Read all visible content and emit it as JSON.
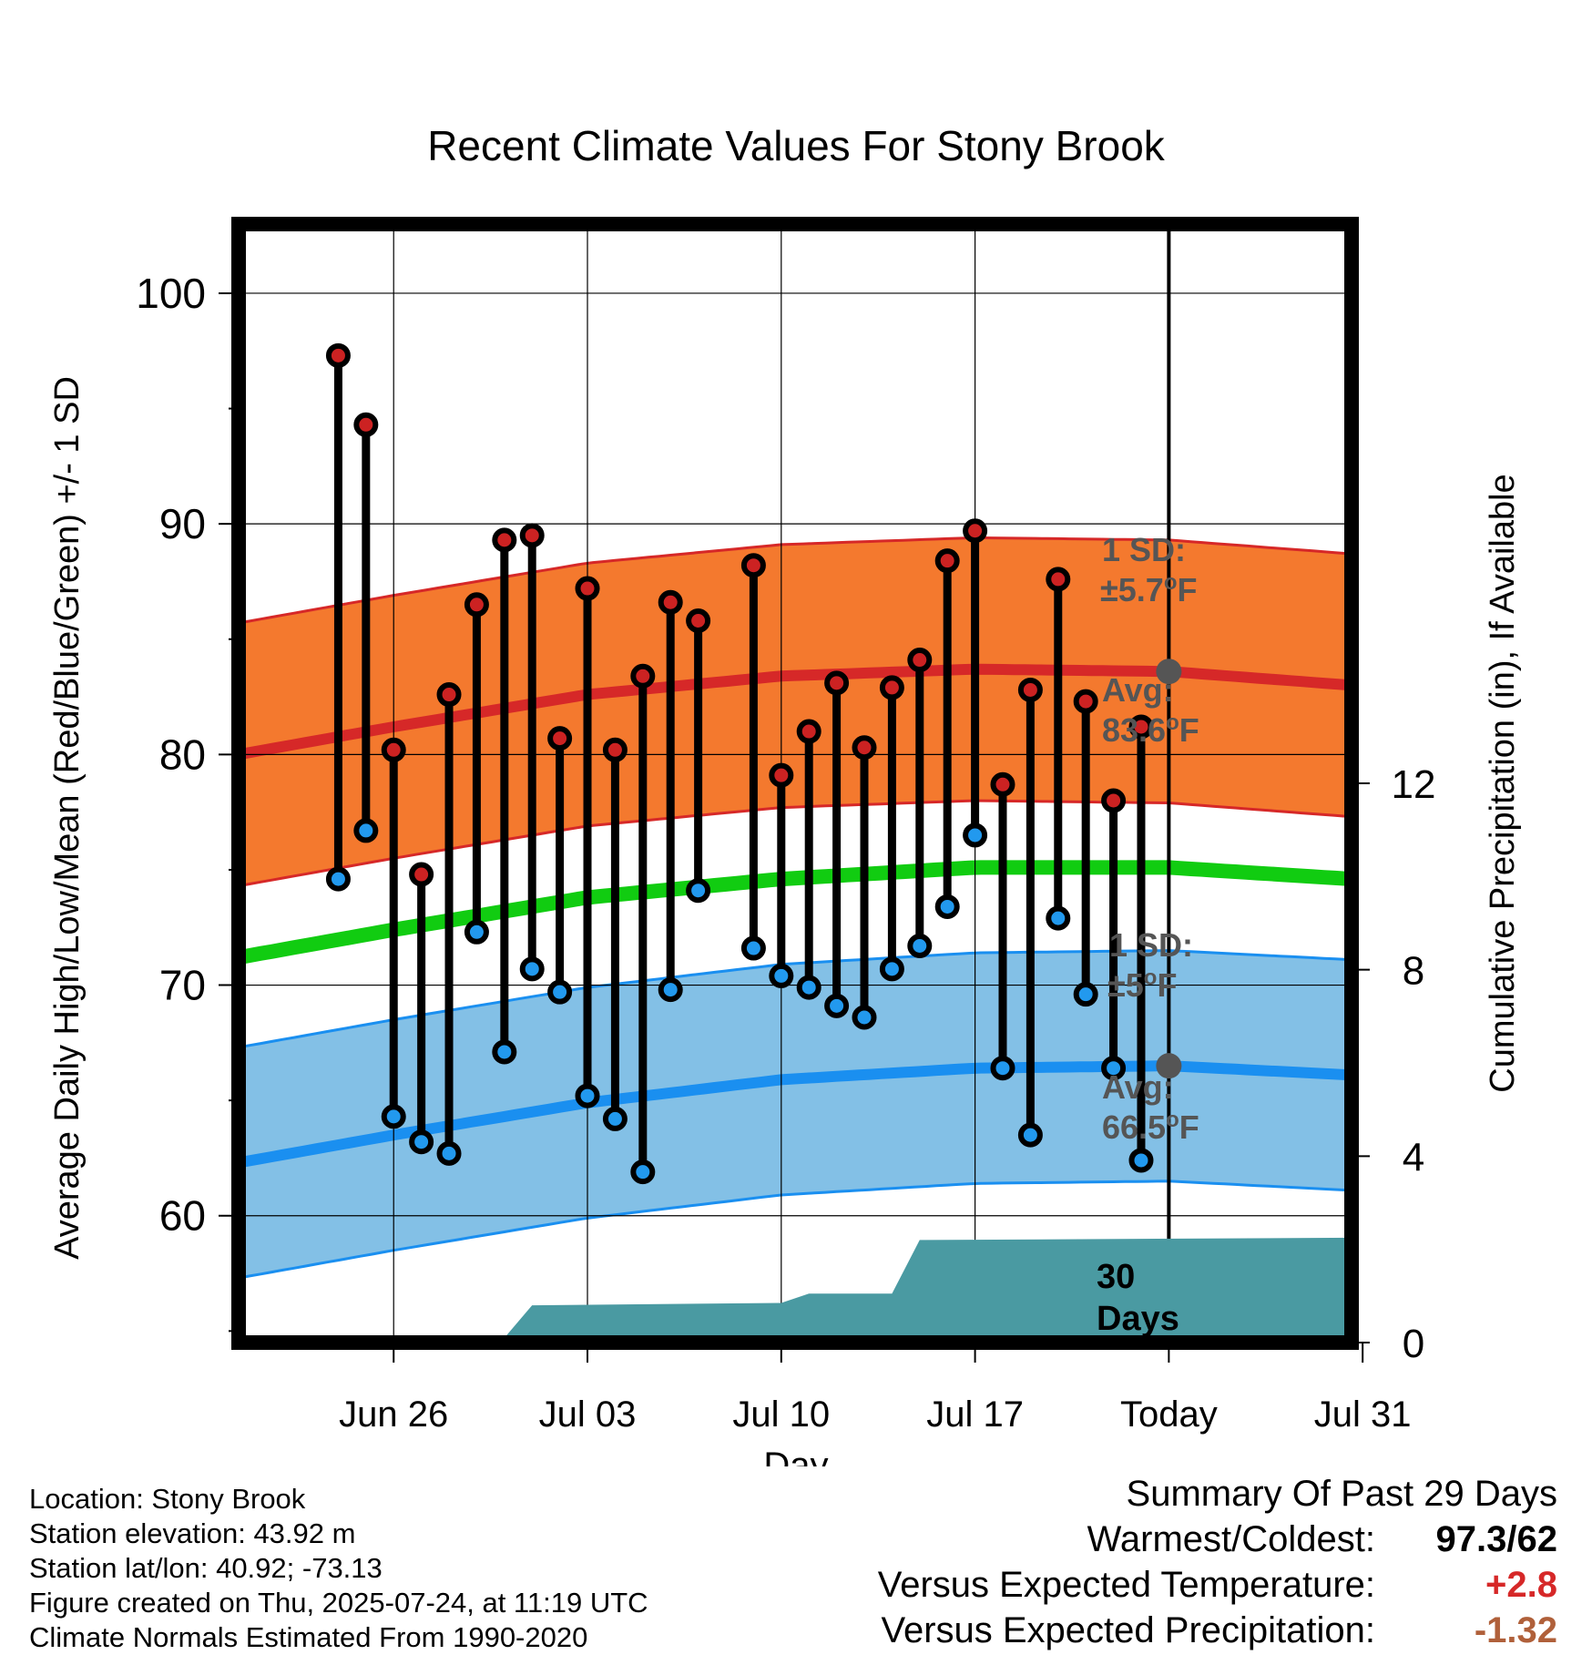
{
  "title": "Recent Climate Values For Stony Brook",
  "colors": {
    "high_dot": "#cc2222",
    "low_dot": "#2299ee",
    "high_band": "#f4792e",
    "high_avg": "#d62828",
    "low_band": "#83c0e6",
    "low_avg": "#1a8ff0",
    "mean_line": "#11cc11",
    "precip": "#4a9aa2",
    "annotation": "#555555",
    "anomaly_temp": "#d62828",
    "anomaly_precip": "#b0603a"
  },
  "chart_data": {
    "type": "line",
    "title": "Recent Climate Values For Stony Brook",
    "xlabel": "Day",
    "ylabel": "Average Daily High/Low/Mean (Red/Blue/Green) +/- 1 SD",
    "y2label": "Cumulative Precipitation (in), If Available",
    "ylim": [
      54.5,
      103
    ],
    "y2lim": [
      0,
      24
    ],
    "xlim": [
      -5.6,
      34.6
    ],
    "x_ticks": [
      {
        "x": 0,
        "label": "Jun 26"
      },
      {
        "x": 7,
        "label": "Jul 03"
      },
      {
        "x": 14,
        "label": "Jul 10"
      },
      {
        "x": 21,
        "label": "Jul 17"
      },
      {
        "x": 28,
        "label": "Today"
      },
      {
        "x": 35,
        "label": "Jul 31"
      }
    ],
    "y_ticks": [
      60,
      70,
      80,
      90,
      100
    ],
    "y2_ticks": [
      0,
      4,
      8,
      12
    ],
    "grid": true,
    "today_x": 28,
    "daily_high": [
      [
        -2,
        97.3
      ],
      [
        -1,
        94.3
      ],
      [
        0,
        80.2
      ],
      [
        1,
        74.8
      ],
      [
        2,
        82.6
      ],
      [
        3,
        86.5
      ],
      [
        4,
        89.3
      ],
      [
        5,
        89.5
      ],
      [
        6,
        80.7
      ],
      [
        7,
        87.2
      ],
      [
        8,
        80.2
      ],
      [
        9,
        83.4
      ],
      [
        10,
        86.6
      ],
      [
        11,
        85.8
      ],
      [
        13,
        88.2
      ],
      [
        14,
        79.1
      ],
      [
        15,
        81.0
      ],
      [
        16,
        83.1
      ],
      [
        17,
        80.3
      ],
      [
        18,
        82.9
      ],
      [
        19,
        84.1
      ],
      [
        20,
        88.4
      ],
      [
        21,
        89.7
      ],
      [
        22,
        78.7
      ],
      [
        23,
        82.8
      ],
      [
        24,
        87.6
      ],
      [
        25,
        82.3
      ],
      [
        26,
        78.0
      ],
      [
        27,
        81.2
      ]
    ],
    "daily_low": [
      [
        -2,
        74.6
      ],
      [
        -1,
        76.7
      ],
      [
        0,
        64.3
      ],
      [
        1,
        63.2
      ],
      [
        2,
        62.7
      ],
      [
        3,
        72.3
      ],
      [
        4,
        67.1
      ],
      [
        5,
        70.7
      ],
      [
        6,
        69.7
      ],
      [
        7,
        65.2
      ],
      [
        8,
        64.2
      ],
      [
        9,
        61.9
      ],
      [
        10,
        69.8
      ],
      [
        11,
        74.1
      ],
      [
        13,
        71.6
      ],
      [
        14,
        70.4
      ],
      [
        15,
        69.9
      ],
      [
        16,
        69.1
      ],
      [
        17,
        68.6
      ],
      [
        18,
        70.7
      ],
      [
        19,
        71.7
      ],
      [
        20,
        73.4
      ],
      [
        21,
        76.5
      ],
      [
        22,
        66.4
      ],
      [
        23,
        63.5
      ],
      [
        24,
        72.9
      ],
      [
        25,
        69.6
      ],
      [
        26,
        66.4
      ],
      [
        27,
        62.4
      ]
    ],
    "normal_high": [
      [
        -5.6,
        80.0
      ],
      [
        0,
        81.2
      ],
      [
        7,
        82.6
      ],
      [
        14,
        83.4
      ],
      [
        21,
        83.7
      ],
      [
        28,
        83.6
      ],
      [
        34.6,
        83.0
      ]
    ],
    "normal_low": [
      [
        -5.6,
        62.3
      ],
      [
        0,
        63.5
      ],
      [
        7,
        64.9
      ],
      [
        14,
        65.9
      ],
      [
        21,
        66.4
      ],
      [
        28,
        66.5
      ],
      [
        34.6,
        66.1
      ]
    ],
    "normal_mean": [
      [
        -5.6,
        71.2
      ],
      [
        0,
        72.4
      ],
      [
        7,
        73.8
      ],
      [
        14,
        74.6
      ],
      [
        21,
        75.1
      ],
      [
        28,
        75.1
      ],
      [
        34.6,
        74.6
      ]
    ],
    "high_sd": 5.7,
    "low_sd": 5.0,
    "cumulative_precip": [
      [
        0,
        0.05
      ],
      [
        4,
        0.1
      ],
      [
        5,
        0.8
      ],
      [
        14,
        0.85
      ],
      [
        15,
        1.05
      ],
      [
        18,
        1.05
      ],
      [
        19,
        2.2
      ],
      [
        34.6,
        2.25
      ]
    ],
    "annotations": {
      "high_sd": "1 SD:",
      "high_sd_value": "±5.7",
      "high_avg": "Avg:",
      "high_avg_value": "83.6",
      "low_sd": "1 SD:",
      "low_sd_value": "±5",
      "low_avg": "Avg:",
      "low_avg_value": "66.5",
      "unit": "oF",
      "period_number": "30",
      "period_label": "Days"
    }
  },
  "station": {
    "location": "Location: Stony Brook",
    "elevation": "Station elevation: 43.92 m",
    "latlon": "Station lat/lon: 40.92; -73.13",
    "created": "Figure created on Thu, 2025-07-24, at 11:19 UTC",
    "normals": "Climate Normals Estimated From 1990-2020"
  },
  "summary": {
    "heading": "Summary Of Past 29 Days",
    "warmest_label": "Warmest/Coldest:",
    "warmest_value": "97.3/62",
    "temp_label": "Versus Expected Temperature:",
    "temp_value": "+2.8",
    "precip_label": "Versus Expected Precipitation:",
    "precip_value": "-1.32"
  }
}
